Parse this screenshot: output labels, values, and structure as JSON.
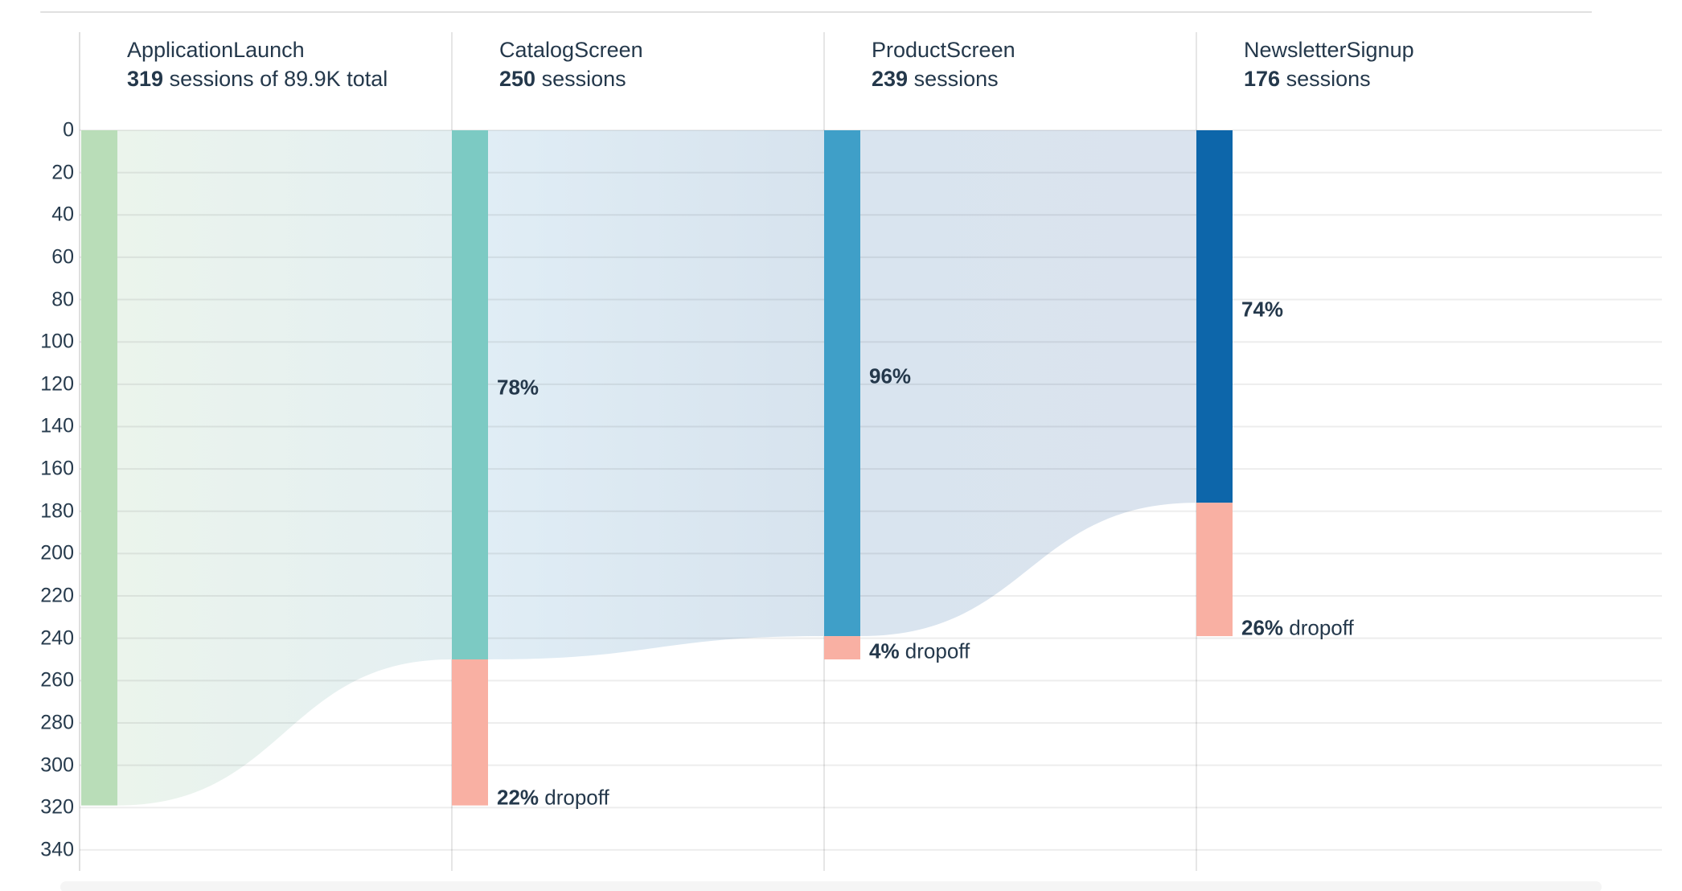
{
  "chart_data": {
    "type": "funnel",
    "title": "",
    "unit": "sessions",
    "total_label": "89.9K",
    "steps": [
      {
        "name": "ApplicationLaunch",
        "sessions": 319,
        "sessions_text": "319",
        "subtitle_suffix": " sessions of 89.9K total",
        "conversion_from_prev_pct": null,
        "dropoff_pct": null
      },
      {
        "name": "CatalogScreen",
        "sessions": 250,
        "sessions_text": "250",
        "subtitle_suffix": " sessions",
        "conversion_from_prev_pct": 78,
        "dropoff_pct": 22
      },
      {
        "name": "ProductScreen",
        "sessions": 239,
        "sessions_text": "239",
        "subtitle_suffix": " sessions",
        "conversion_from_prev_pct": 96,
        "dropoff_pct": 4
      },
      {
        "name": "NewsletterSignup",
        "sessions": 176,
        "sessions_text": "176",
        "subtitle_suffix": " sessions",
        "conversion_from_prev_pct": 74,
        "dropoff_pct": 26
      }
    ],
    "conversion_labels": [
      "78%",
      "96%",
      "74%"
    ],
    "dropoff_labels": [
      "22% dropoff",
      "4% dropoff",
      "26% dropoff"
    ],
    "dropoff_suffix": " dropoff",
    "y_axis": {
      "min": 0,
      "max": 340,
      "tick_step": 20,
      "tick_labels": [
        "0",
        "20",
        "40",
        "60",
        "80",
        "100",
        "120",
        "140",
        "160",
        "180",
        "200",
        "220",
        "240",
        "260",
        "280",
        "300",
        "320",
        "340"
      ]
    },
    "layout_hints": {
      "gridlines": true,
      "column_separators": true,
      "orientation": "top-aligned vertical funnel"
    }
  },
  "colors": {
    "background": "#ffffff",
    "step_bars": [
      "#b9ddb8",
      "#7ccac3",
      "#3f9fc8",
      "#0d66aa"
    ],
    "dropoff_bar": "#f9b0a3",
    "flow_gradients": [
      [
        "#ebf4ec",
        "#e4eff2"
      ],
      [
        "#e0edf5",
        "#d7e3ee"
      ],
      [
        "#d9e4ef",
        "#dae3ee"
      ]
    ],
    "text_dark": "#24384b",
    "tick_text": "#273b4d",
    "grid_line_rgba": "rgba(0,0,0,0.07)",
    "separator_line": "#e6e6e6",
    "axis_line": "#dfdfdf",
    "top_border": "#e0e0e0",
    "scrollbar_track": "#f5f5f5"
  }
}
